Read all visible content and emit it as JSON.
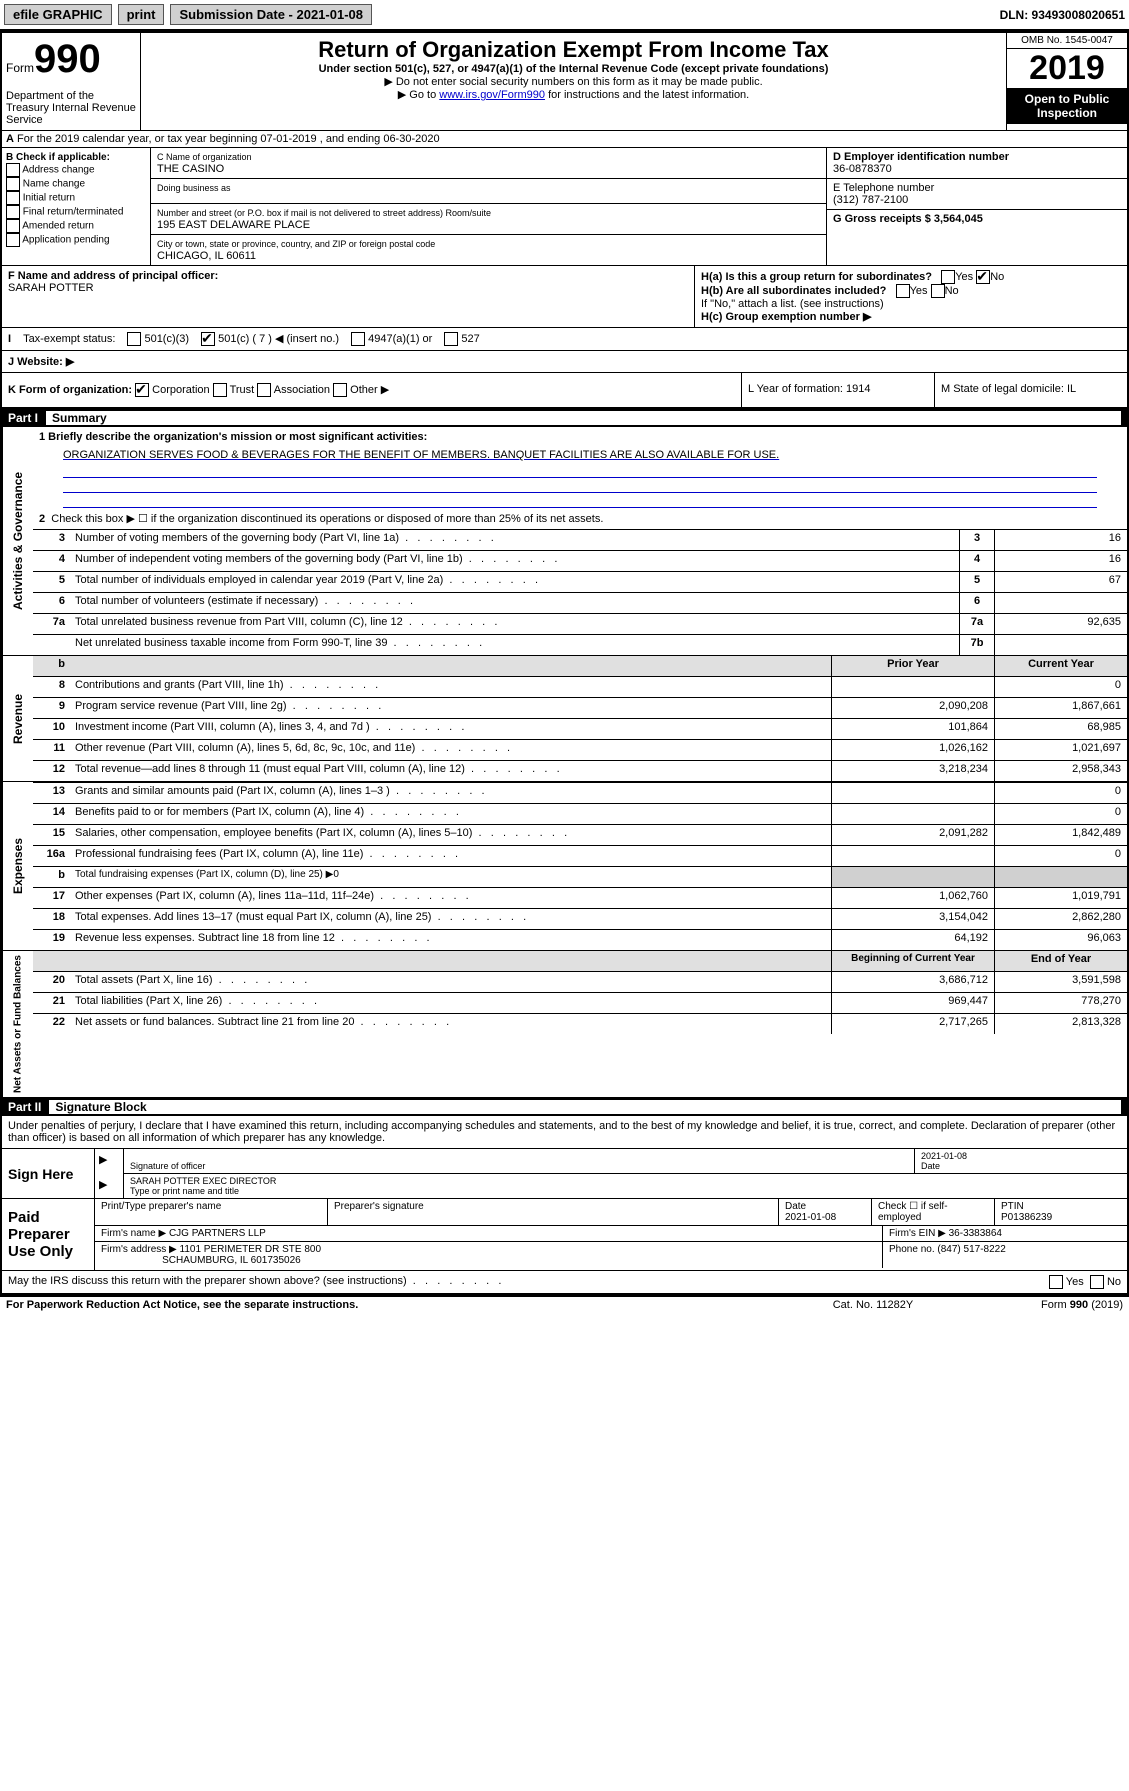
{
  "topbar": {
    "efile": "efile GRAPHIC",
    "print": "print",
    "submission": "Submission Date - 2021-01-08",
    "dln": "DLN: 93493008020651"
  },
  "header": {
    "form_label": "Form",
    "form_num": "990",
    "title": "Return of Organization Exempt From Income Tax",
    "subtitle": "Under section 501(c), 527, or 4947(a)(1) of the Internal Revenue Code (except private foundations)",
    "note1": "▶ Do not enter social security numbers on this form as it may be made public.",
    "note2_pre": "▶ Go to ",
    "note2_link": "www.irs.gov/Form990",
    "note2_post": " for instructions and the latest information.",
    "omb": "OMB No. 1545-0047",
    "year": "2019",
    "open": "Open to Public Inspection",
    "dept": "Department of the Treasury Internal Revenue Service"
  },
  "section_a": "For the 2019 calendar year, or tax year beginning 07-01-2019    , and ending 06-30-2020",
  "col_b": {
    "label": "B Check if applicable:",
    "items": [
      "Address change",
      "Name change",
      "Initial return",
      "Final return/terminated",
      "Amended return",
      "Application pending"
    ]
  },
  "col_c": {
    "name_label": "C Name of organization",
    "name": "THE CASINO",
    "dba": "Doing business as",
    "addr_label": "Number and street (or P.O. box if mail is not delivered to street address)          Room/suite",
    "addr": "195 EAST DELAWARE PLACE",
    "city_label": "City or town, state or province, country, and ZIP or foreign postal code",
    "city": "CHICAGO, IL  60611"
  },
  "col_de": {
    "d_label": "D Employer identification number",
    "d_val": "36-0878370",
    "e_label": "E Telephone number",
    "e_val": "(312) 787-2100",
    "g_label": "G Gross receipts $ 3,564,045"
  },
  "col_f": {
    "label": "F  Name and address of principal officer:",
    "name": "SARAH POTTER"
  },
  "col_h": {
    "ha": "H(a)  Is this a group return for subordinates?",
    "ha_yes": "Yes",
    "ha_no": "No",
    "hb": "H(b)  Are all subordinates included?",
    "hb_note": "If \"No,\" attach a list. (see instructions)",
    "hc": "H(c)  Group exemption number ▶"
  },
  "tax_status": {
    "label": "Tax-exempt status:",
    "c3": "501(c)(3)",
    "c7": "501(c) ( 7 ) ◀ (insert no.)",
    "a1": "4947(a)(1) or",
    "527": "527"
  },
  "website": "J   Website: ▶",
  "klm": {
    "k": "K Form of organization:",
    "k_corp": "Corporation",
    "k_trust": "Trust",
    "k_assoc": "Association",
    "k_other": "Other ▶",
    "l": "L Year of formation: 1914",
    "m": "M State of legal domicile: IL"
  },
  "part1": {
    "header_num": "Part I",
    "header_title": "Summary",
    "side1": "Activities & Governance",
    "line1_label": "1  Briefly describe the organization's mission or most significant activities:",
    "line1_text": "ORGANIZATION SERVES FOOD & BEVERAGES FOR THE BENEFIT OF MEMBERS. BANQUET FACILITIES ARE ALSO AVAILABLE FOR USE.",
    "line2": "Check this box ▶ ☐  if the organization discontinued its operations or disposed of more than 25% of its net assets.",
    "rows_gov": [
      {
        "n": "3",
        "label": "Number of voting members of the governing body (Part VI, line 1a)",
        "box": "3",
        "val": "16"
      },
      {
        "n": "4",
        "label": "Number of independent voting members of the governing body (Part VI, line 1b)",
        "box": "4",
        "val": "16"
      },
      {
        "n": "5",
        "label": "Total number of individuals employed in calendar year 2019 (Part V, line 2a)",
        "box": "5",
        "val": "67"
      },
      {
        "n": "6",
        "label": "Total number of volunteers (estimate if necessary)",
        "box": "6",
        "val": ""
      },
      {
        "n": "7a",
        "label": "Total unrelated business revenue from Part VIII, column (C), line 12",
        "box": "7a",
        "val": "92,635"
      },
      {
        "n": "",
        "label": "Net unrelated business taxable income from Form 990-T, line 39",
        "box": "7b",
        "val": ""
      }
    ],
    "side2": "Revenue",
    "col_prior": "Prior Year",
    "col_current": "Current Year",
    "rows_rev": [
      {
        "n": "8",
        "label": "Contributions and grants (Part VIII, line 1h)",
        "prior": "",
        "cur": "0"
      },
      {
        "n": "9",
        "label": "Program service revenue (Part VIII, line 2g)",
        "prior": "2,090,208",
        "cur": "1,867,661"
      },
      {
        "n": "10",
        "label": "Investment income (Part VIII, column (A), lines 3, 4, and 7d )",
        "prior": "101,864",
        "cur": "68,985"
      },
      {
        "n": "11",
        "label": "Other revenue (Part VIII, column (A), lines 5, 6d, 8c, 9c, 10c, and 11e)",
        "prior": "1,026,162",
        "cur": "1,021,697"
      },
      {
        "n": "12",
        "label": "Total revenue—add lines 8 through 11 (must equal Part VIII, column (A), line 12)",
        "prior": "3,218,234",
        "cur": "2,958,343"
      }
    ],
    "side3": "Expenses",
    "rows_exp": [
      {
        "n": "13",
        "label": "Grants and similar amounts paid (Part IX, column (A), lines 1–3 )",
        "prior": "",
        "cur": "0"
      },
      {
        "n": "14",
        "label": "Benefits paid to or for members (Part IX, column (A), line 4)",
        "prior": "",
        "cur": "0"
      },
      {
        "n": "15",
        "label": "Salaries, other compensation, employee benefits (Part IX, column (A), lines 5–10)",
        "prior": "2,091,282",
        "cur": "1,842,489"
      },
      {
        "n": "16a",
        "label": "Professional fundraising fees (Part IX, column (A), line 11e)",
        "prior": "",
        "cur": "0"
      },
      {
        "n": "b",
        "label": "Total fundraising expenses (Part IX, column (D), line 25) ▶0",
        "prior": "",
        "cur": ""
      },
      {
        "n": "17",
        "label": "Other expenses (Part IX, column (A), lines 11a–11d, 11f–24e)",
        "prior": "1,062,760",
        "cur": "1,019,791"
      },
      {
        "n": "18",
        "label": "Total expenses. Add lines 13–17 (must equal Part IX, column (A), line 25)",
        "prior": "3,154,042",
        "cur": "2,862,280"
      },
      {
        "n": "19",
        "label": "Revenue less expenses. Subtract line 18 from line 12",
        "prior": "64,192",
        "cur": "96,063"
      }
    ],
    "side4": "Net Assets or Fund Balances",
    "col_begin": "Beginning of Current Year",
    "col_end": "End of Year",
    "rows_net": [
      {
        "n": "20",
        "label": "Total assets (Part X, line 16)",
        "prior": "3,686,712",
        "cur": "3,591,598"
      },
      {
        "n": "21",
        "label": "Total liabilities (Part X, line 26)",
        "prior": "969,447",
        "cur": "778,270"
      },
      {
        "n": "22",
        "label": "Net assets or fund balances. Subtract line 21 from line 20",
        "prior": "2,717,265",
        "cur": "2,813,328"
      }
    ]
  },
  "part2": {
    "header_num": "Part II",
    "header_title": "Signature Block",
    "perjury": "Under penalties of perjury, I declare that I have examined this return, including accompanying schedules and statements, and to the best of my knowledge and belief, it is true, correct, and complete. Declaration of preparer (other than officer) is based on all information of which preparer has any knowledge.",
    "sign_here": "Sign Here",
    "sig_officer": "Signature of officer",
    "sig_date": "2021-01-08",
    "sig_date_lbl": "Date",
    "officer_name": "SARAH POTTER  EXEC DIRECTOR",
    "officer_type": "Type or print name and title",
    "paid": "Paid Preparer Use Only",
    "prep_name_lbl": "Print/Type preparer's name",
    "prep_sig_lbl": "Preparer's signature",
    "prep_date_lbl": "Date",
    "prep_date": "2021-01-08",
    "check_self": "Check ☐ if self-employed",
    "ptin_lbl": "PTIN",
    "ptin": "P01386239",
    "firm_name_lbl": "Firm's name    ▶",
    "firm_name": "CJG PARTNERS LLP",
    "firm_ein_lbl": "Firm's EIN ▶",
    "firm_ein": "36-3383864",
    "firm_addr_lbl": "Firm's address ▶",
    "firm_addr": "1101 PERIMETER DR STE 800",
    "firm_city": "SCHAUMBURG, IL  601735026",
    "phone_lbl": "Phone no.",
    "phone": "(847) 517-8222",
    "discuss": "May the IRS discuss this return with the preparer shown above? (see instructions)",
    "yes": "Yes",
    "no": "No"
  },
  "footer": {
    "pra": "For Paperwork Reduction Act Notice, see the separate instructions.",
    "cat": "Cat. No. 11282Y",
    "form": "Form 990 (2019)"
  }
}
